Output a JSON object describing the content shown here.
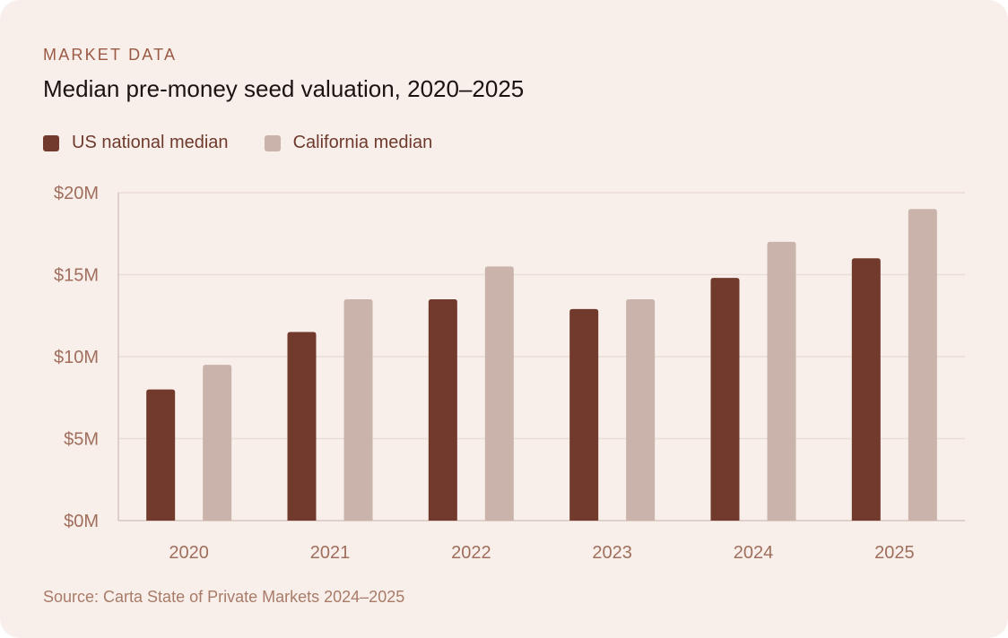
{
  "header": {
    "eyebrow": "MARKET DATA",
    "title": "Median pre-money seed valuation, 2020–2025"
  },
  "footer": {
    "source": "Source: Carta State of Private Markets 2024–2025"
  },
  "colors": {
    "us": "#723a2c",
    "california": "#c9b3aa",
    "grid": "#eadcd6",
    "axis": "#d8c6bf"
  },
  "chart_data": {
    "type": "bar",
    "title": "Median pre-money seed valuation, 2020–2025",
    "xlabel": "",
    "ylabel": "",
    "categories": [
      "2020",
      "2021",
      "2022",
      "2023",
      "2024",
      "2025"
    ],
    "series": [
      {
        "name": "US national median",
        "values": [
          8.0,
          11.5,
          13.5,
          12.9,
          14.8,
          16.0
        ]
      },
      {
        "name": "California median",
        "values": [
          9.5,
          13.5,
          15.5,
          13.5,
          17.0,
          19.0
        ]
      }
    ],
    "ylim": [
      0,
      20
    ],
    "yticks": [
      0,
      5,
      10,
      15,
      20
    ],
    "ytick_labels": [
      "$0M",
      "$5M",
      "$10M",
      "$15M",
      "$20M"
    ],
    "grid": true,
    "legend": "top-left"
  }
}
